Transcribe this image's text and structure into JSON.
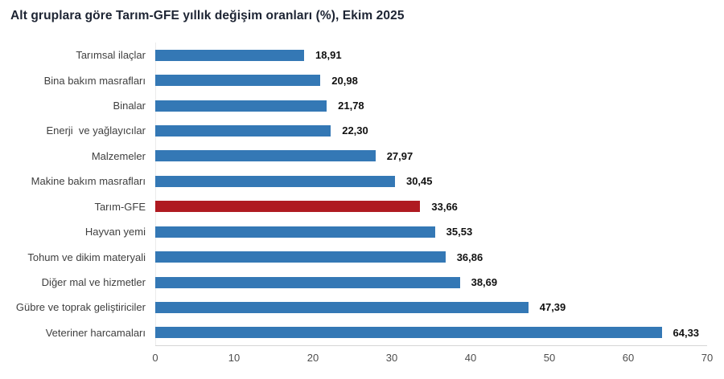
{
  "title": "Alt gruplara göre Tarım-GFE yıllık değişim oranları (%), Ekim 2025",
  "colors": {
    "bar": "#3478B5",
    "highlight": "#AF1A21",
    "title_text": "#1d2433",
    "category_text": "#404040",
    "value_text": "#111111",
    "axis_text": "#4d4d4d",
    "axis_line": "#d6d6d6"
  },
  "chart_data": {
    "type": "bar",
    "orientation": "horizontal",
    "title": "Alt gruplara göre Tarım-GFE yıllık değişim oranları (%), Ekim 2025",
    "categories": [
      "Tarımsal ilaçlar",
      "Bina bakım masrafları",
      "Binalar",
      "Enerji  ve yağlayıcılar",
      "Malzemeler",
      "Makine bakım masrafları",
      "Tarım-GFE",
      "Hayvan yemi",
      "Tohum ve dikim materyali",
      "Diğer mal ve hizmetler",
      "Gübre ve toprak geliştiriciler",
      "Veteriner harcamaları"
    ],
    "values": [
      18.91,
      20.98,
      21.78,
      22.3,
      27.97,
      30.45,
      33.66,
      35.53,
      36.86,
      38.69,
      47.39,
      64.33
    ],
    "value_labels": [
      "18,91",
      "20,98",
      "21,78",
      "22,30",
      "27,97",
      "30,45",
      "33,66",
      "35,53",
      "36,86",
      "38,69",
      "47,39",
      "64,33"
    ],
    "highlight_category": "Tarım-GFE",
    "highlight_index": 6,
    "xlabel": "",
    "ylabel": "",
    "xlim": [
      0,
      70
    ],
    "x_ticks": [
      "0",
      "10",
      "20",
      "30",
      "40",
      "50",
      "60",
      "70"
    ],
    "grid": false,
    "legend": false
  }
}
